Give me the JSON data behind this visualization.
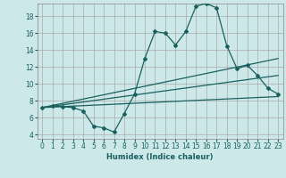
{
  "title": "",
  "xlabel": "Humidex (Indice chaleur)",
  "ylabel": "",
  "background_color": "#cce8e8",
  "grid_color": "#aaaaaa",
  "line_color": "#1a6060",
  "x_ticks": [
    0,
    1,
    2,
    3,
    4,
    5,
    6,
    7,
    8,
    9,
    10,
    11,
    12,
    13,
    14,
    15,
    16,
    17,
    18,
    19,
    20,
    21,
    22,
    23
  ],
  "y_ticks": [
    4,
    6,
    8,
    10,
    12,
    14,
    16,
    18
  ],
  "xlim": [
    -0.5,
    23.5
  ],
  "ylim": [
    3.5,
    19.5
  ],
  "main_line_x": [
    0,
    1,
    2,
    3,
    4,
    5,
    6,
    7,
    8,
    9,
    10,
    11,
    12,
    13,
    14,
    15,
    16,
    17,
    18,
    19,
    20,
    21,
    22,
    23
  ],
  "main_line_y": [
    7.2,
    7.4,
    7.3,
    7.2,
    6.8,
    5.0,
    4.8,
    4.3,
    6.5,
    8.8,
    13.0,
    16.2,
    16.0,
    14.6,
    16.2,
    19.2,
    19.5,
    19.0,
    14.5,
    11.8,
    12.2,
    11.0,
    9.5,
    8.8
  ],
  "regression_lines": [
    {
      "x": [
        0,
        23
      ],
      "y": [
        7.2,
        13.0
      ]
    },
    {
      "x": [
        0,
        23
      ],
      "y": [
        7.2,
        11.0
      ]
    },
    {
      "x": [
        0,
        23
      ],
      "y": [
        7.2,
        8.5
      ]
    }
  ],
  "marker": "D",
  "markersize": 2.0,
  "linewidth": 0.9,
  "tick_fontsize": 5.5,
  "xlabel_fontsize": 6.0
}
